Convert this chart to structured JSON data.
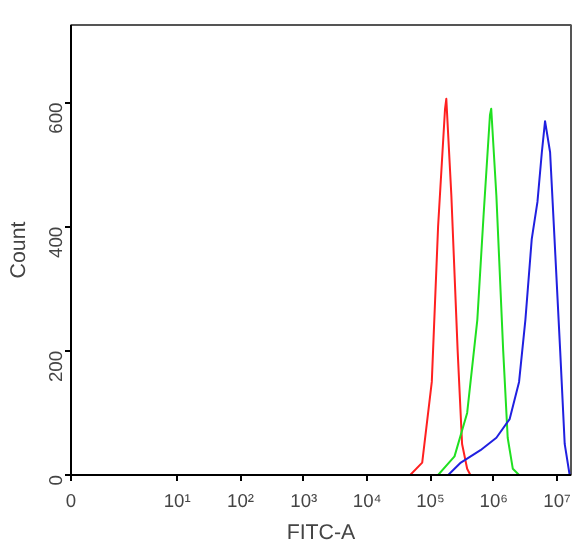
{
  "chart_data": {
    "type": "line",
    "xlabel": "FITC-A",
    "ylabel": "Count",
    "log": "x",
    "grid": false,
    "marker": "none",
    "line_style": "solid",
    "xlim": [
      0.21,
      16600000
    ],
    "ylim": [
      0,
      725
    ],
    "xticks": [
      {
        "value": 0.21,
        "label": "0"
      },
      {
        "value": 10,
        "label": "10¹"
      },
      {
        "value": 100,
        "label": "10²"
      },
      {
        "value": 1000,
        "label": "10³"
      },
      {
        "value": 10000,
        "label": "10⁴"
      },
      {
        "value": 100000,
        "label": "10⁵"
      },
      {
        "value": 1000000,
        "label": "10⁶"
      },
      {
        "value": 10000000,
        "label": "10⁷"
      }
    ],
    "yticks": [
      0,
      200,
      400,
      600
    ],
    "series": [
      {
        "color": "#ff2020",
        "x": [
          47900,
          74100,
          105000,
          132000,
          170000,
          178000,
          214000,
          269000,
          316000,
          380000,
          427000
        ],
        "values": [
          0,
          20,
          150,
          400,
          590,
          606,
          450,
          200,
          50,
          10,
          0
        ]
      },
      {
        "color": "#20e020",
        "x": [
          132000,
          240000,
          380000,
          550000,
          692000,
          871000,
          912000,
          1100000,
          1410000,
          1660000,
          2000000,
          2510000
        ],
        "values": [
          0,
          30,
          100,
          250,
          420,
          580,
          590,
          450,
          200,
          60,
          10,
          0
        ]
      },
      {
        "color": "#2020e0",
        "x": [
          191000,
          302000,
          617000,
          1100000,
          1780000,
          2510000,
          3160000,
          3980000,
          4900000,
          5750000,
          6460000,
          7760000,
          9120000,
          11200000,
          13200000,
          15800000
        ],
        "values": [
          0,
          20,
          40,
          60,
          90,
          150,
          250,
          380,
          440,
          520,
          570,
          520,
          380,
          200,
          50,
          0
        ]
      }
    ]
  }
}
